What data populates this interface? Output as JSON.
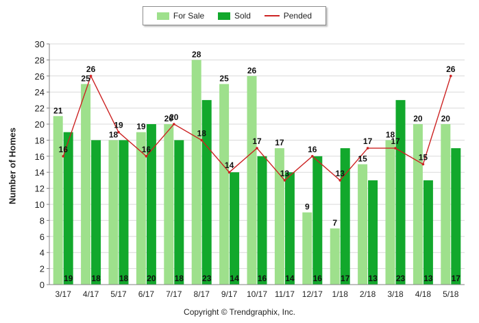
{
  "colors": {
    "for_sale": "#9ee08c",
    "sold": "#12a82c",
    "pended": "#cc2222",
    "grid": "#d9d9d9",
    "axis": "#808080"
  },
  "copyright": "Copyright © Trendgraphix, Inc.",
  "chart_data": {
    "type": "bar",
    "ylabel": "Number of Homes",
    "ylim": [
      0,
      30
    ],
    "yticks": [
      0,
      2,
      4,
      6,
      8,
      10,
      12,
      14,
      16,
      18,
      20,
      22,
      24,
      26,
      28,
      30
    ],
    "grid": true,
    "legend_position": "top-center",
    "categories": [
      "3/17",
      "4/17",
      "5/17",
      "6/17",
      "7/17",
      "8/17",
      "9/17",
      "10/17",
      "11/17",
      "12/17",
      "1/18",
      "2/18",
      "3/18",
      "4/18",
      "5/18"
    ],
    "series": [
      {
        "name": "For Sale",
        "type": "bar",
        "values": [
          21,
          25,
          18,
          19,
          20,
          28,
          25,
          26,
          17,
          9,
          7,
          15,
          18,
          20,
          20
        ]
      },
      {
        "name": "Sold",
        "type": "bar",
        "values": [
          19,
          18,
          18,
          20,
          18,
          23,
          14,
          16,
          14,
          16,
          17,
          13,
          23,
          13,
          17
        ]
      },
      {
        "name": "Pended",
        "type": "line",
        "values": [
          16,
          26,
          19,
          16,
          20,
          18,
          14,
          17,
          13,
          16,
          13,
          17,
          17,
          15,
          26
        ]
      }
    ]
  }
}
